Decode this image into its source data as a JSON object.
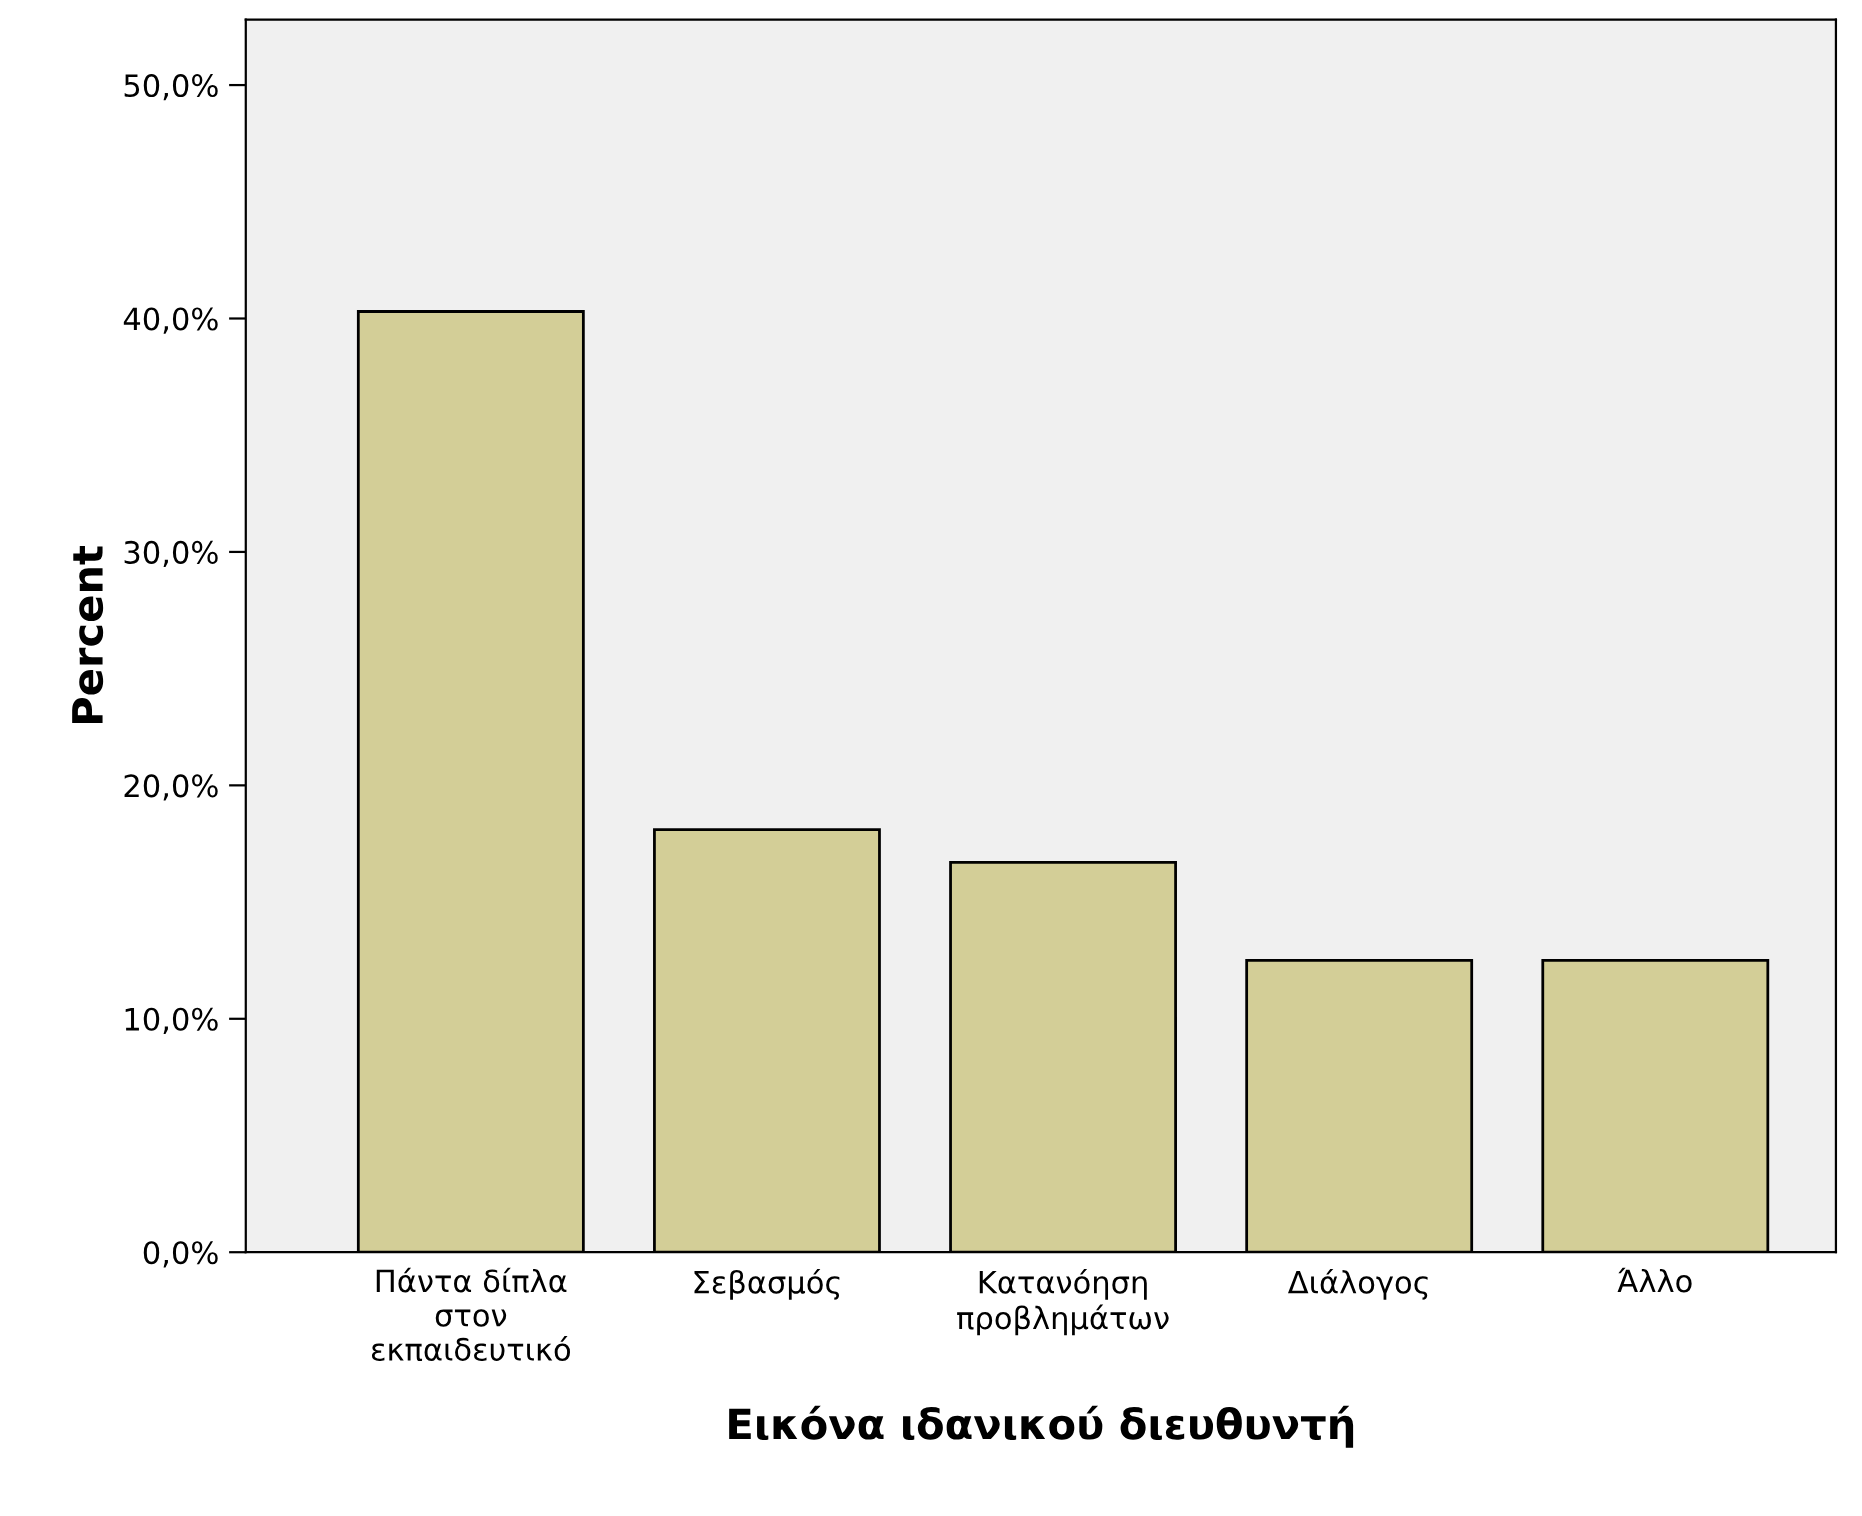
{
  "chart_data": {
    "type": "bar",
    "xlabel": "Εικόνα ιδανικού διευθυντή",
    "ylabel": "Percent",
    "categories": [
      "Πάντα δίπλα\nστον\nεκπαιδευτικό",
      "Σεβασμός",
      "Κατανόηση\nπροβλημάτων",
      "Διάλογος",
      "Άλλο"
    ],
    "values": [
      40.3,
      18.1,
      16.7,
      12.5,
      12.5
    ],
    "color": "#d3ce97",
    "ylim": [
      0,
      52.8
    ],
    "yticks": [
      {
        "value": 0,
        "label": "0,0%"
      },
      {
        "value": 10,
        "label": "10,0%"
      },
      {
        "value": 20,
        "label": "20,0%"
      },
      {
        "value": 30,
        "label": "30,0%"
      },
      {
        "value": 40,
        "label": "40,0%"
      },
      {
        "value": 50,
        "label": "50,0%"
      }
    ],
    "grid": false
  }
}
